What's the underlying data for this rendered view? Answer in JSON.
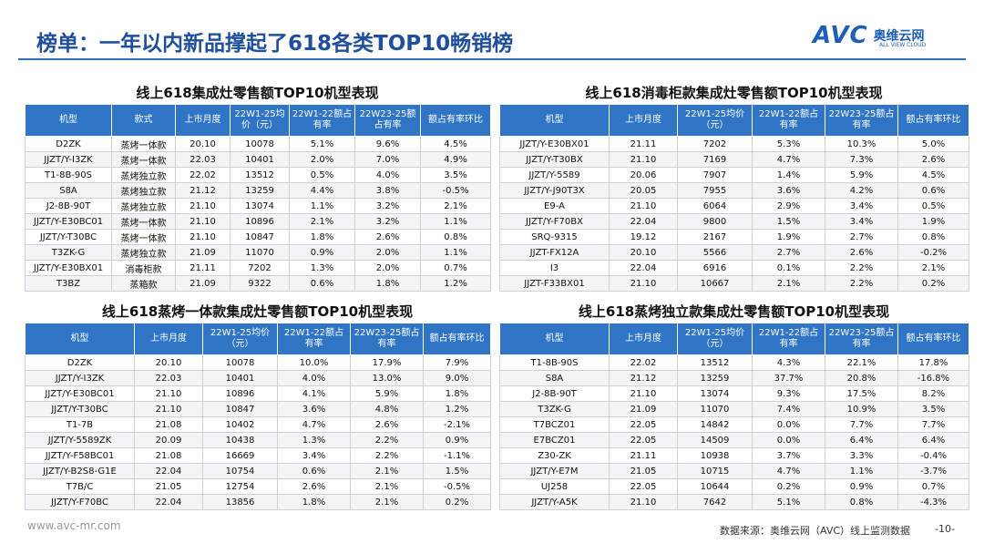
{
  "header": {
    "title": "榜单：一年以内新品撑起了618各类TOP10畅销榜",
    "logo": {
      "brand": "AVC",
      "name": "奥维云网",
      "tagline": "ALL VIEW CLOUD"
    }
  },
  "tables": [
    {
      "title": "线上618集成灶零售额TOP10机型表现",
      "columns": [
        "机型",
        "款式",
        "上市月度",
        "22W1-25均价（元）",
        "22W1-22额占有率",
        "22W23-25额占有率",
        "额占有率环比"
      ],
      "rows": [
        [
          "D2ZK",
          "蒸烤一体款",
          "20.10",
          "10078",
          "5.1%",
          "9.6%",
          "4.5%"
        ],
        [
          "JJZT/Y-I3ZK",
          "蒸烤一体款",
          "22.03",
          "10401",
          "2.0%",
          "7.0%",
          "4.9%"
        ],
        [
          "T1-8B-90S",
          "蒸烤独立款",
          "22.02",
          "13512",
          "0.5%",
          "4.0%",
          "3.5%"
        ],
        [
          "S8A",
          "蒸烤独立款",
          "21.12",
          "13259",
          "4.4%",
          "3.8%",
          "-0.5%"
        ],
        [
          "J2-8B-90T",
          "蒸烤独立款",
          "21.10",
          "13074",
          "1.1%",
          "3.2%",
          "2.1%"
        ],
        [
          "JJZT/Y-E30BC01",
          "蒸烤一体款",
          "21.10",
          "10896",
          "2.1%",
          "3.2%",
          "1.1%"
        ],
        [
          "JJZT/Y-T30BC",
          "蒸烤一体款",
          "21.10",
          "10847",
          "1.8%",
          "2.6%",
          "0.8%"
        ],
        [
          "T3ZK-G",
          "蒸烤独立款",
          "21.09",
          "11070",
          "0.9%",
          "2.0%",
          "1.1%"
        ],
        [
          "JJZT/Y-E30BX01",
          "消毒柜款",
          "21.11",
          "7202",
          "1.3%",
          "2.0%",
          "0.7%"
        ],
        [
          "T3BZ",
          "蒸箱款",
          "21.09",
          "9322",
          "0.6%",
          "1.8%",
          "1.2%"
        ]
      ]
    },
    {
      "title": "线上618消毒柜款集成灶零售额TOP10机型表现",
      "columns": [
        "机型",
        "上市月度",
        "22W1-25均价（元）",
        "22W1-22额占有率",
        "22W23-25额占有率",
        "额占有率环比"
      ],
      "rows": [
        [
          "JJZT/Y-E30BX01",
          "21.11",
          "7202",
          "5.3%",
          "10.3%",
          "5.0%"
        ],
        [
          "JJZT/Y-T30BX",
          "21.10",
          "7169",
          "4.7%",
          "7.3%",
          "2.6%"
        ],
        [
          "JJZT/Y-5589",
          "20.06",
          "7907",
          "1.4%",
          "5.9%",
          "4.5%"
        ],
        [
          "JJZT/Y-J90T3X",
          "20.05",
          "7955",
          "3.6%",
          "4.2%",
          "0.6%"
        ],
        [
          "E9-A",
          "21.10",
          "6064",
          "2.9%",
          "3.4%",
          "0.5%"
        ],
        [
          "JJZT/Y-F70BX",
          "22.04",
          "9800",
          "1.5%",
          "3.4%",
          "1.9%"
        ],
        [
          "SRQ-9315",
          "19.12",
          "2167",
          "1.9%",
          "2.7%",
          "0.8%"
        ],
        [
          "JJZT-FX12A",
          "20.10",
          "5566",
          "2.7%",
          "2.6%",
          "-0.2%"
        ],
        [
          "I3",
          "22.04",
          "6916",
          "0.1%",
          "2.2%",
          "2.1%"
        ],
        [
          "JJZT-F33BX01",
          "21.10",
          "10667",
          "2.1%",
          "2.2%",
          "0.2%"
        ]
      ]
    },
    {
      "title": "线上618蒸烤一体款集成灶零售额TOP10机型表现",
      "columns": [
        "机型",
        "上市月度",
        "22W1-25均价（元）",
        "22W1-22额占有率",
        "22W23-25额占有率",
        "额占有率环比"
      ],
      "rows": [
        [
          "D2ZK",
          "20.10",
          "10078",
          "10.0%",
          "17.9%",
          "7.9%"
        ],
        [
          "JJZT/Y-I3ZK",
          "22.03",
          "10401",
          "4.0%",
          "13.0%",
          "9.0%"
        ],
        [
          "JJZT/Y-E30BC01",
          "21.10",
          "10896",
          "4.1%",
          "5.9%",
          "1.8%"
        ],
        [
          "JJZT/Y-T30BC",
          "21.10",
          "10847",
          "3.6%",
          "4.8%",
          "1.2%"
        ],
        [
          "T1-7B",
          "21.08",
          "10402",
          "4.7%",
          "2.6%",
          "-2.1%"
        ],
        [
          "JJZT/Y-5589ZK",
          "20.09",
          "10438",
          "1.3%",
          "2.2%",
          "0.9%"
        ],
        [
          "JJZT/Y-F58BC01",
          "21.08",
          "16669",
          "3.4%",
          "2.2%",
          "-1.1%"
        ],
        [
          "JJZT/Y-B2S8-G1E",
          "22.04",
          "10754",
          "0.6%",
          "2.1%",
          "1.5%"
        ],
        [
          "T7B/C",
          "21.05",
          "12754",
          "2.6%",
          "2.1%",
          "-0.5%"
        ],
        [
          "JJZT/Y-F70BC",
          "22.04",
          "13856",
          "1.8%",
          "2.1%",
          "0.2%"
        ]
      ]
    },
    {
      "title": "线上618蒸烤独立款集成灶零售额TOP10机型表现",
      "columns": [
        "机型",
        "上市月度",
        "22W1-25均价（元）",
        "22W1-22额占有率",
        "22W23-25额占有率",
        "额占有率环比"
      ],
      "rows": [
        [
          "T1-8B-90S",
          "22.02",
          "13512",
          "4.3%",
          "22.1%",
          "17.8%"
        ],
        [
          "S8A",
          "21.12",
          "13259",
          "37.7%",
          "20.8%",
          "-16.8%"
        ],
        [
          "J2-8B-90T",
          "21.10",
          "13074",
          "9.3%",
          "17.5%",
          "8.2%"
        ],
        [
          "T3ZK-G",
          "21.09",
          "11070",
          "7.4%",
          "10.9%",
          "3.5%"
        ],
        [
          "T7BCZ01",
          "22.05",
          "14842",
          "0.0%",
          "7.7%",
          "7.7%"
        ],
        [
          "E7BCZ01",
          "22.05",
          "14509",
          "0.0%",
          "6.4%",
          "6.4%"
        ],
        [
          "Z30-ZK",
          "21.11",
          "10938",
          "3.7%",
          "3.3%",
          "-0.4%"
        ],
        [
          "JJZT/Y-E7M",
          "21.05",
          "10715",
          "4.7%",
          "1.1%",
          "-3.7%"
        ],
        [
          "UJ258",
          "22.05",
          "10644",
          "0.2%",
          "0.9%",
          "0.7%"
        ],
        [
          "JJZT/Y-A5K",
          "21.10",
          "7642",
          "5.1%",
          "0.8%",
          "-4.3%"
        ]
      ]
    }
  ],
  "footer": {
    "url": "www.avc-mr.com",
    "source": "数据来源：奥维云网（AVC）线上监测数据",
    "page": "-10-"
  }
}
